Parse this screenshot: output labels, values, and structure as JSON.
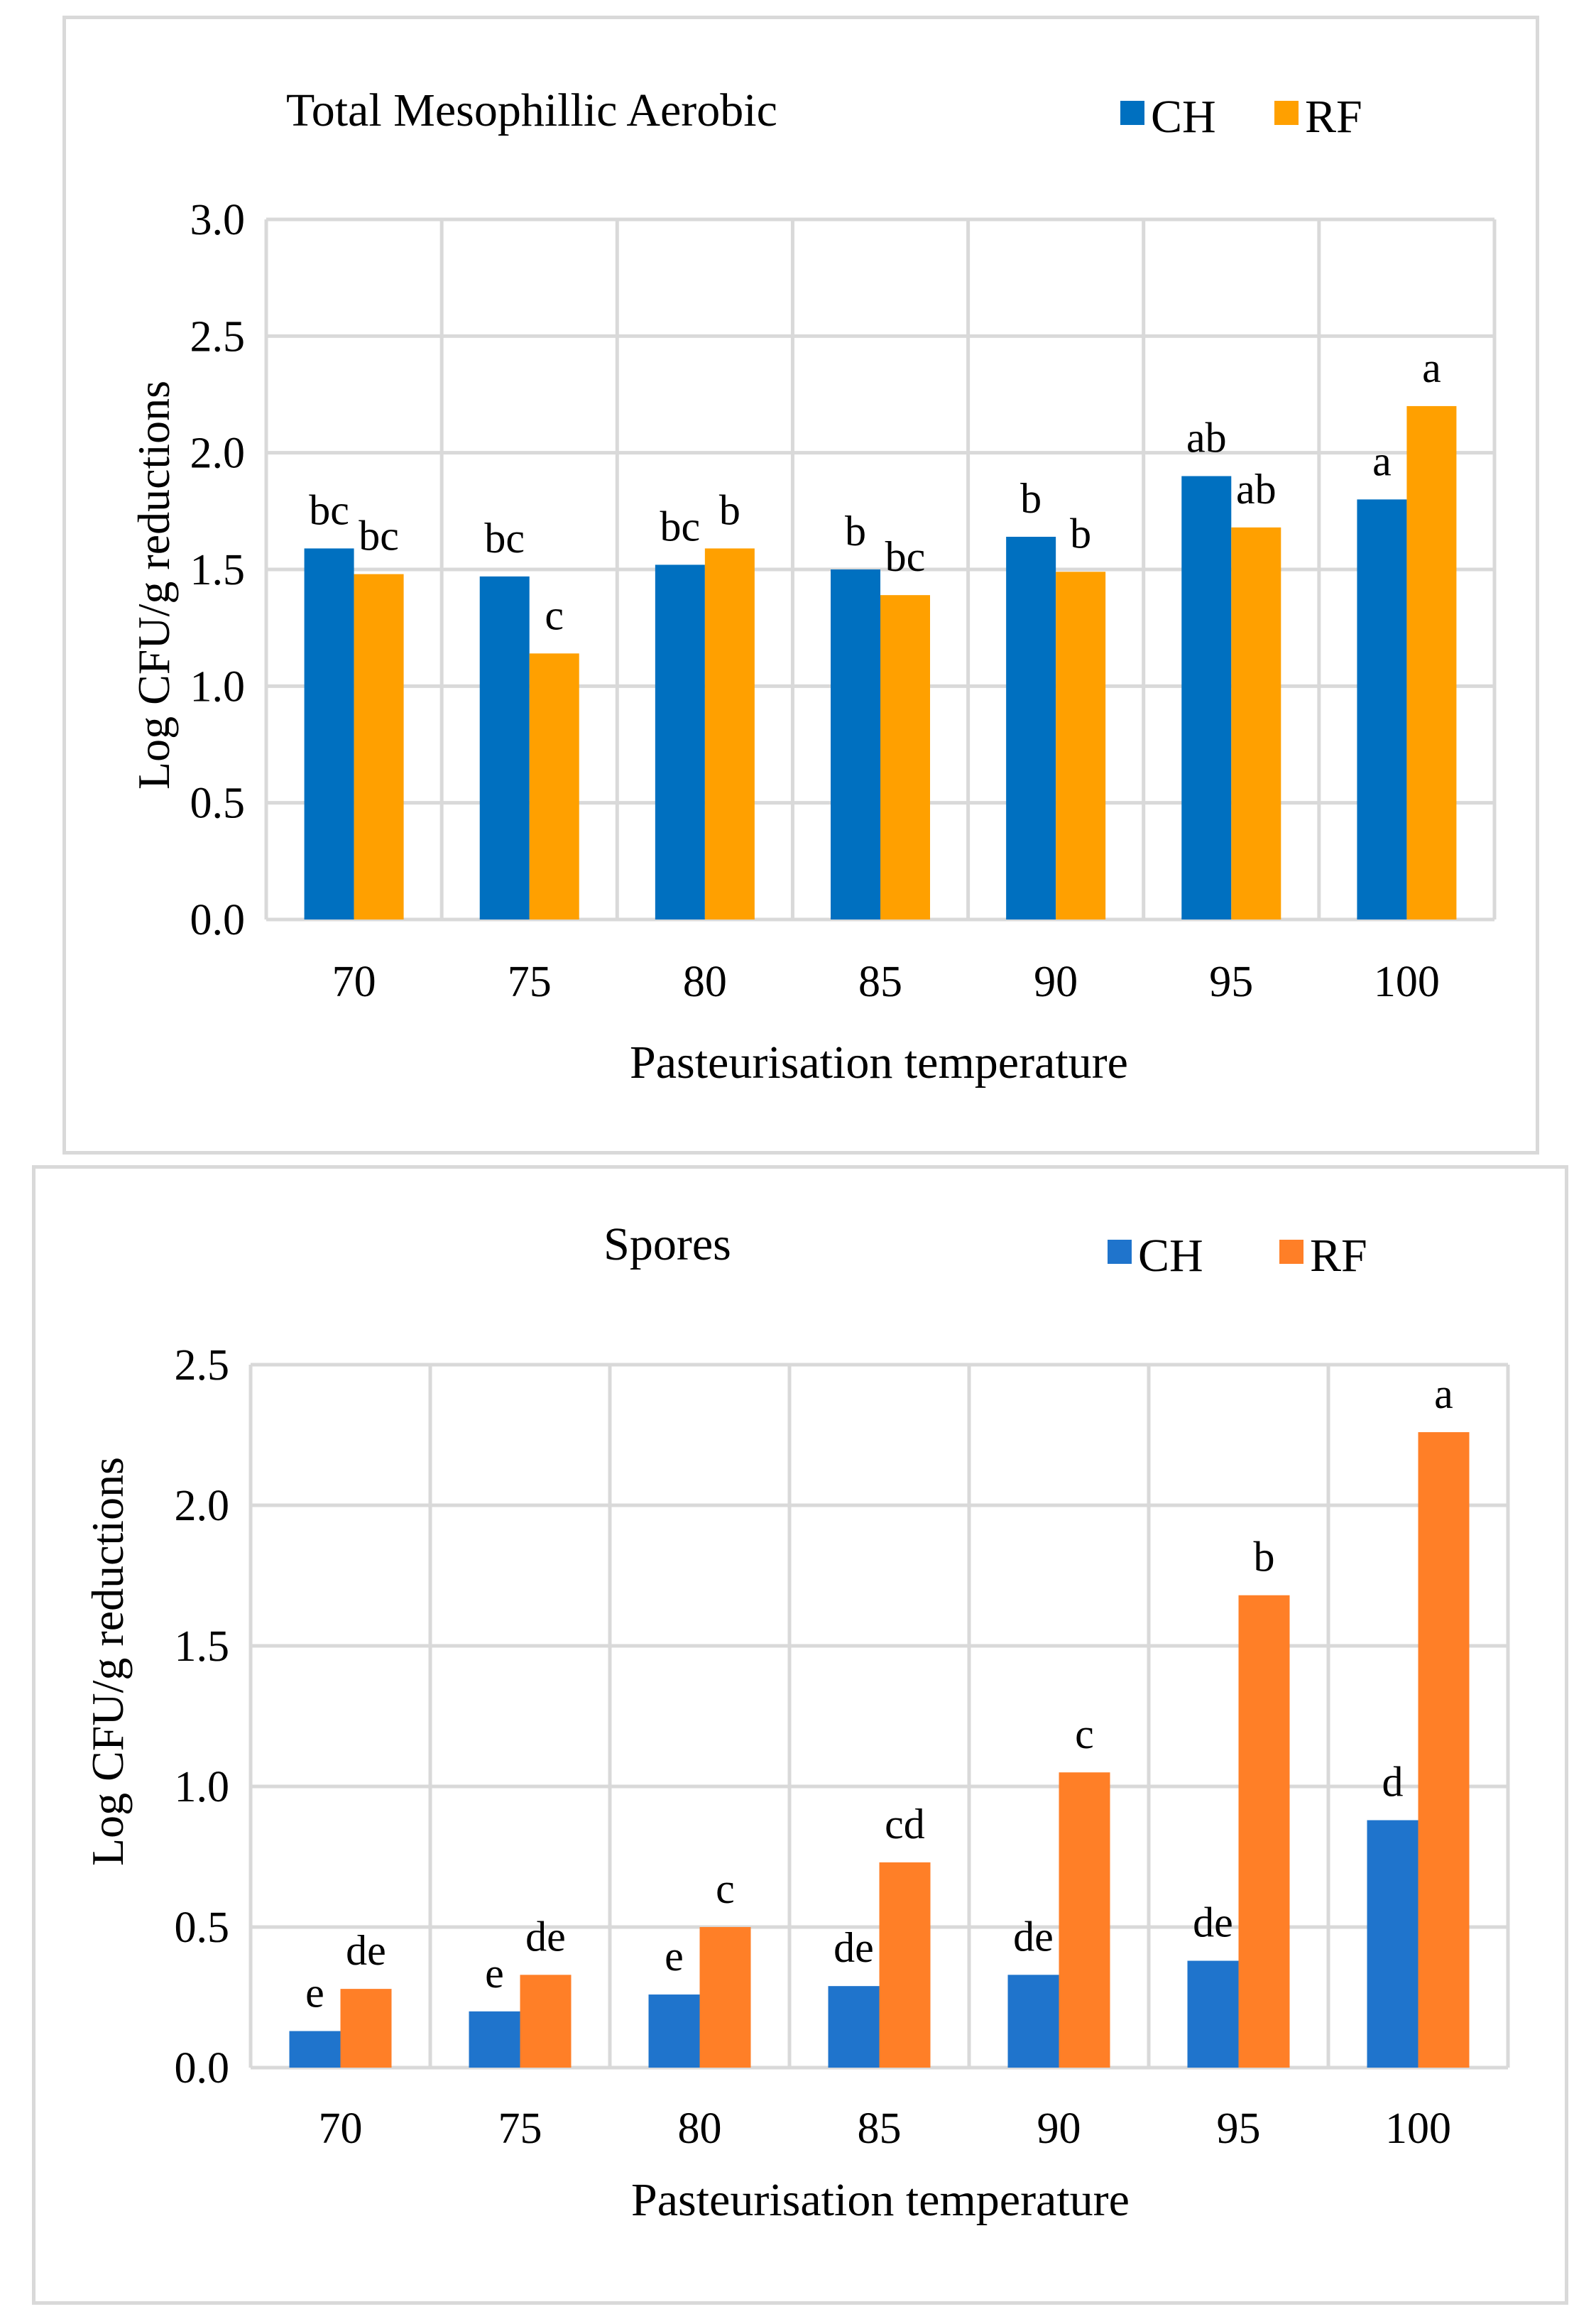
{
  "chart_data": [
    {
      "type": "bar",
      "title": "Total Mesophillic Aerobic",
      "xlabel": "Pasteurisation temperature",
      "ylabel": "Log CFU/g reductions",
      "categories": [
        "70",
        "75",
        "80",
        "85",
        "90",
        "95",
        "100"
      ],
      "ylim": [
        0,
        3.0
      ],
      "yticks": [
        "0.0",
        "0.5",
        "1.0",
        "1.5",
        "2.0",
        "2.5",
        "3.0"
      ],
      "grid": true,
      "legend_position": "top-right",
      "series": [
        {
          "name": "CH",
          "color": "#0070c0",
          "values": [
            1.59,
            1.47,
            1.52,
            1.5,
            1.64,
            1.9,
            1.8
          ],
          "labels": [
            "bc",
            "bc",
            "bc",
            "b",
            "b",
            "ab",
            "a"
          ]
        },
        {
          "name": "RF",
          "color": "#ffa000",
          "values": [
            1.48,
            1.14,
            1.59,
            1.39,
            1.49,
            1.68,
            2.2
          ],
          "labels": [
            "bc",
            "c",
            "b",
            "bc",
            "b",
            "ab",
            "a"
          ]
        }
      ]
    },
    {
      "type": "bar",
      "title": "Spores",
      "xlabel": "Pasteurisation temperature",
      "ylabel": "Log CFU/g reductions",
      "categories": [
        "70",
        "75",
        "80",
        "85",
        "90",
        "95",
        "100"
      ],
      "ylim": [
        0,
        2.5
      ],
      "yticks": [
        "0.0",
        "0.5",
        "1.0",
        "1.5",
        "2.0",
        "2.5"
      ],
      "grid": true,
      "legend_position": "top-right",
      "series": [
        {
          "name": "CH",
          "color": "#1f74cc",
          "values": [
            0.13,
            0.2,
            0.26,
            0.29,
            0.33,
            0.38,
            0.88
          ],
          "labels": [
            "e",
            "e",
            "e",
            "de",
            "de",
            "de",
            "d"
          ]
        },
        {
          "name": "RF",
          "color": "#ff7f27",
          "values": [
            0.28,
            0.33,
            0.5,
            0.73,
            1.05,
            1.68,
            2.26
          ],
          "labels": [
            "de",
            "de",
            "c",
            "cd",
            "c",
            "b",
            "a"
          ]
        }
      ]
    }
  ]
}
